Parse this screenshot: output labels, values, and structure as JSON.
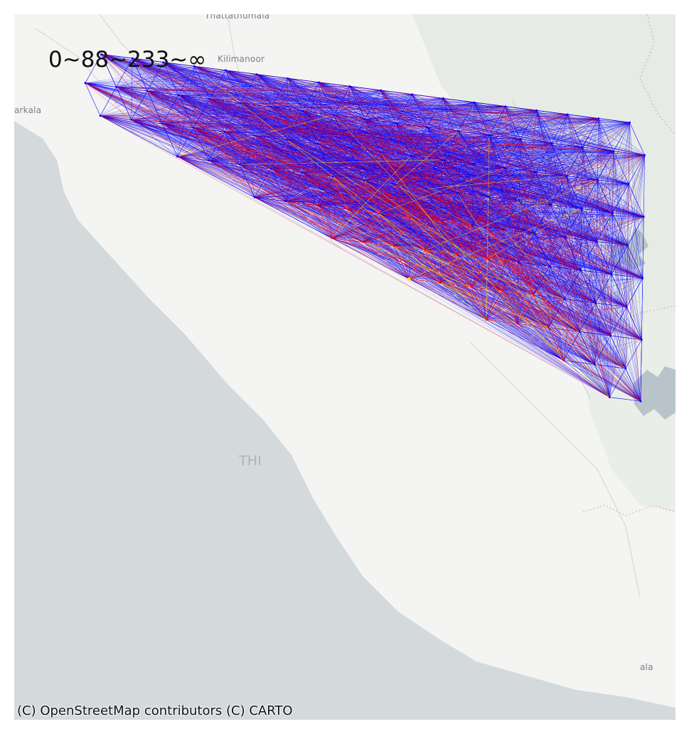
{
  "map": {
    "place_labels": [
      {
        "id": "thattathumala",
        "text": "Thattathumala"
      },
      {
        "id": "kilimanoor",
        "text": "Kilimanoor"
      },
      {
        "id": "varkala",
        "text": "arkala"
      },
      {
        "id": "vithura",
        "text": "Vithura"
      },
      {
        "id": "thiruvananthapuram",
        "text": "THI"
      },
      {
        "id": "neyyattinkara",
        "text": "ala"
      }
    ],
    "legend_label": "0~88~233~∞",
    "attribution": "(C) OpenStreetMap contributors (C) CARTO",
    "colors": {
      "sea": "#d4dadc",
      "land": "#f4f4f2",
      "forest": "#e6ebe5",
      "water": "#b9c3ca",
      "edge_low": "#0000ff",
      "edge_mid": "#ff0000",
      "edge_high": "#ffe000"
    },
    "edge_bins": [
      "0~88",
      "88~233",
      "233~∞"
    ]
  }
}
